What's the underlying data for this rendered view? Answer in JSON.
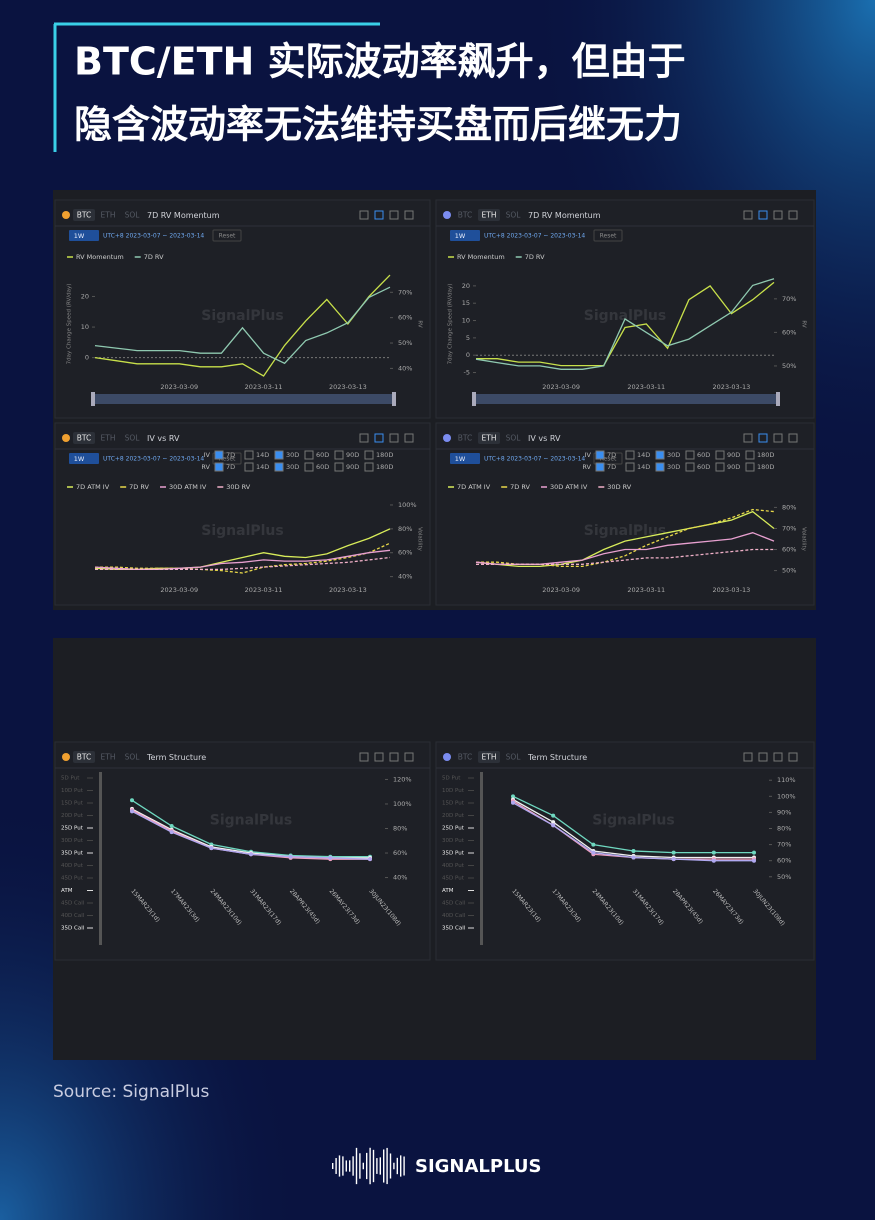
{
  "title": [
    "BTC/ETH 实际波动率飙升，但由于",
    "隐含波动率无法维持买盘而后继无力"
  ],
  "source": "Source: SignalPlus",
  "brand": "SIGNALPLUS",
  "chart_data": [
    {
      "type": "line",
      "tabs": [
        "BTC",
        "ETH",
        "SOL"
      ],
      "active": "BTC",
      "coin_color": "#f0a030",
      "title": "7D RV Momentum",
      "interval": "1W",
      "date_range": "UTC+8 2023-03-07 ~ 2023-03-14",
      "reset": "Reset",
      "watermark": "SignalPlus",
      "ylabel": "7day Change Speed (RV/day)",
      "y2label": "RV",
      "categories": [
        null,
        null,
        null,
        null,
        "2023-03-09",
        null,
        null,
        null,
        "2023-03-11",
        null,
        null,
        null,
        "2023-03-13",
        null,
        null
      ],
      "ylim": [
        -6,
        28
      ],
      "yticks": [
        0,
        10,
        20
      ],
      "y2lim": [
        37,
        78
      ],
      "y2ticks": [
        {
          "value": 40,
          "label": "40%"
        },
        {
          "value": 50,
          "label": "50%"
        },
        {
          "value": 60,
          "label": "60%"
        },
        {
          "value": 70,
          "label": "70%"
        }
      ],
      "series": [
        {
          "name": "RV Momentum",
          "color": "#c8e04a",
          "values": [
            0,
            -1,
            -2,
            -2,
            -2,
            -3,
            -3,
            -2,
            -6,
            4,
            12,
            19,
            11,
            20,
            27
          ]
        },
        {
          "name": "7D RV",
          "color": "#8fc9b0",
          "axis": "y2",
          "values": [
            49,
            48,
            47,
            47,
            47,
            46,
            46,
            56,
            46,
            42,
            51,
            54,
            58,
            68,
            72
          ]
        }
      ]
    },
    {
      "type": "line",
      "tabs": [
        "BTC",
        "ETH",
        "SOL"
      ],
      "active": "ETH",
      "coin_color": "#7b8cf0",
      "title": "7D RV Momentum",
      "interval": "1W",
      "date_range": "UTC+8 2023-03-07 ~ 2023-03-14",
      "reset": "Reset",
      "watermark": "SignalPlus",
      "ylabel": "7day Change Speed (RV/day)",
      "y2label": "RV",
      "categories": [
        null,
        null,
        null,
        null,
        "2023-03-09",
        null,
        null,
        null,
        "2023-03-11",
        null,
        null,
        null,
        "2023-03-13",
        null,
        null
      ],
      "ylim": [
        -6,
        24
      ],
      "yticks": [
        -5,
        0,
        5,
        10,
        15,
        20
      ],
      "y2lim": [
        47,
        78
      ],
      "y2ticks": [
        {
          "value": 50,
          "label": "50%"
        },
        {
          "value": 60,
          "label": "60%"
        },
        {
          "value": 70,
          "label": "70%"
        }
      ],
      "series": [
        {
          "name": "RV Momentum",
          "color": "#c8e04a",
          "values": [
            -1,
            -1,
            -2,
            -2,
            -3,
            -3,
            -3,
            8,
            9,
            2,
            16,
            20,
            12,
            16,
            21
          ]
        },
        {
          "name": "7D RV",
          "color": "#8fc9b0",
          "axis": "y2",
          "values": [
            52,
            51,
            50,
            50,
            49,
            49,
            50,
            64,
            60,
            56,
            58,
            62,
            66,
            74,
            76
          ]
        }
      ]
    },
    {
      "type": "line",
      "tabs": [
        "BTC",
        "ETH",
        "SOL"
      ],
      "active": "BTC",
      "coin_color": "#f0a030",
      "title": "IV vs RV",
      "interval": "1W",
      "date_range": "UTC+8 2023-03-07 ~ 2023-03-14",
      "reset": "Reset",
      "watermark": "SignalPlus",
      "checks": [
        {
          "label": "IV",
          "options": [
            "7D",
            "14D",
            "30D",
            "60D",
            "90D",
            "180D"
          ],
          "checked": [
            true,
            false,
            true,
            false,
            false,
            false
          ]
        },
        {
          "label": "RV",
          "options": [
            "7D",
            "14D",
            "30D",
            "60D",
            "90D",
            "180D"
          ],
          "checked": [
            true,
            false,
            true,
            false,
            false,
            false
          ]
        }
      ],
      "y2label": "Volatility",
      "categories": [
        null,
        null,
        null,
        null,
        "2023-03-09",
        null,
        null,
        null,
        "2023-03-11",
        null,
        null,
        null,
        "2023-03-13",
        null,
        null
      ],
      "y2lim": [
        38,
        105
      ],
      "y2ticks": [
        {
          "value": 40,
          "label": "40%"
        },
        {
          "value": 60,
          "label": "60%"
        },
        {
          "value": 80,
          "label": "80%"
        },
        {
          "value": 100,
          "label": "100%"
        }
      ],
      "series": [
        {
          "name": "7D ATM IV",
          "color": "#d8ec5a",
          "axis": "y2",
          "values": [
            47,
            46,
            46,
            47,
            47,
            48,
            52,
            56,
            60,
            57,
            56,
            59,
            66,
            72,
            80
          ]
        },
        {
          "name": "7D RV",
          "color": "#e8d84a",
          "axis": "y2",
          "dash": true,
          "values": [
            48,
            48,
            47,
            47,
            47,
            46,
            45,
            43,
            48,
            50,
            51,
            53,
            56,
            60,
            68
          ]
        },
        {
          "name": "30D ATM IV",
          "color": "#e8a0d0",
          "axis": "y2",
          "values": [
            48,
            47,
            46,
            46,
            47,
            48,
            51,
            52,
            54,
            53,
            53,
            54,
            57,
            60,
            62
          ]
        },
        {
          "name": "30D RV",
          "color": "#f0b0c8",
          "axis": "y2",
          "dash": true,
          "values": [
            46,
            46,
            46,
            46,
            46,
            46,
            46,
            47,
            48,
            49,
            50,
            51,
            52,
            54,
            56
          ]
        }
      ]
    },
    {
      "type": "line",
      "tabs": [
        "BTC",
        "ETH",
        "SOL"
      ],
      "active": "ETH",
      "coin_color": "#7b8cf0",
      "title": "IV vs RV",
      "interval": "1W",
      "date_range": "UTC+8 2023-03-07 ~ 2023-03-14",
      "reset": "Reset",
      "watermark": "SignalPlus",
      "checks": [
        {
          "label": "IV",
          "options": [
            "7D",
            "14D",
            "30D",
            "60D",
            "90D",
            "180D"
          ],
          "checked": [
            true,
            false,
            true,
            false,
            false,
            false
          ]
        },
        {
          "label": "RV",
          "options": [
            "7D",
            "14D",
            "30D",
            "60D",
            "90D",
            "180D"
          ],
          "checked": [
            true,
            false,
            true,
            false,
            false,
            false
          ]
        }
      ],
      "y2label": "Volatility",
      "categories": [
        null,
        null,
        null,
        null,
        "2023-03-09",
        null,
        null,
        null,
        "2023-03-11",
        null,
        null,
        null,
        "2023-03-13",
        null,
        null
      ],
      "y2lim": [
        46,
        84
      ],
      "y2ticks": [
        {
          "value": 50,
          "label": "50%"
        },
        {
          "value": 60,
          "label": "60%"
        },
        {
          "value": 70,
          "label": "70%"
        },
        {
          "value": 80,
          "label": "80%"
        }
      ],
      "series": [
        {
          "name": "7D ATM IV",
          "color": "#d8ec5a",
          "axis": "y2",
          "values": [
            54,
            53,
            52,
            52,
            53,
            55,
            60,
            64,
            66,
            68,
            70,
            72,
            74,
            78,
            70
          ]
        },
        {
          "name": "7D RV",
          "color": "#e8d84a",
          "axis": "y2",
          "dash": true,
          "values": [
            54,
            54,
            53,
            53,
            52,
            52,
            54,
            57,
            62,
            66,
            70,
            72,
            75,
            79,
            78
          ]
        },
        {
          "name": "30D ATM IV",
          "color": "#e8a0d0",
          "axis": "y2",
          "values": [
            54,
            53,
            53,
            53,
            54,
            55,
            58,
            60,
            60,
            62,
            63,
            64,
            65,
            68,
            64
          ]
        },
        {
          "name": "30D RV",
          "color": "#f0b0c8",
          "axis": "y2",
          "dash": true,
          "values": [
            53,
            53,
            53,
            53,
            53,
            53,
            54,
            55,
            56,
            56,
            57,
            58,
            59,
            60,
            60
          ]
        }
      ]
    },
    {
      "type": "term",
      "tabs": [
        "BTC",
        "ETH",
        "SOL"
      ],
      "active": "BTC",
      "coin_color": "#f0a030",
      "title": "Term Structure",
      "watermark": "SignalPlus",
      "smile_points": [
        "5D Put",
        "10D Put",
        "15D Put",
        "20D Put",
        "25D Put",
        "30D Put",
        "35D Put",
        "40D Put",
        "45D Put",
        "ATM",
        "45D Call",
        "40D Call",
        "35D Call"
      ],
      "categories": [
        "15MAR23(1d)",
        "17MAR23(3d)",
        "24MAR23(10d)",
        "31MAR23(17d)",
        "28APR23(45d)",
        "26MAY23(73d)",
        "30JUN23(108d)"
      ],
      "y2lim": [
        38,
        122
      ],
      "y2ticks": [
        {
          "value": 40,
          "label": "40%"
        },
        {
          "value": 60,
          "label": "60%"
        },
        {
          "value": 80,
          "label": "80%"
        },
        {
          "value": 100,
          "label": "100%"
        },
        {
          "value": 120,
          "label": "120%"
        }
      ],
      "series": [
        {
          "color": "#6fd8c0",
          "axis": "y2",
          "values": [
            103,
            82,
            67,
            61,
            58,
            57,
            57
          ]
        },
        {
          "color": "#f0f0f0",
          "axis": "y2",
          "values": [
            96,
            79,
            65,
            60,
            57,
            56,
            56
          ]
        },
        {
          "color": "#f0a0c0",
          "axis": "y2",
          "values": [
            95,
            78,
            64,
            59,
            56,
            55,
            55
          ]
        },
        {
          "color": "#b0a8f0",
          "axis": "y2",
          "values": [
            94,
            77,
            64,
            59,
            57,
            56,
            55
          ]
        }
      ]
    },
    {
      "type": "term",
      "tabs": [
        "BTC",
        "ETH",
        "SOL"
      ],
      "active": "ETH",
      "coin_color": "#7b8cf0",
      "title": "Term Structure",
      "watermark": "SignalPlus",
      "smile_points": [
        "5D Put",
        "10D Put",
        "15D Put",
        "20D Put",
        "25D Put",
        "30D Put",
        "35D Put",
        "40D Put",
        "45D Put",
        "ATM",
        "45D Call",
        "40D Call",
        "35D Call"
      ],
      "categories": [
        "15MAR23(1d)",
        "17MAR23(3d)",
        "24MAR23(10d)",
        "31MAR23(17d)",
        "28APR23(45d)",
        "26MAY23(73d)",
        "30JUN23(108d)"
      ],
      "y2lim": [
        48,
        112
      ],
      "y2ticks": [
        {
          "value": 50,
          "label": "50%"
        },
        {
          "value": 60,
          "label": "60%"
        },
        {
          "value": 70,
          "label": "70%"
        },
        {
          "value": 80,
          "label": "80%"
        },
        {
          "value": 90,
          "label": "90%"
        },
        {
          "value": 100,
          "label": "100%"
        },
        {
          "value": 110,
          "label": "110%"
        }
      ],
      "series": [
        {
          "color": "#6fd8c0",
          "axis": "y2",
          "values": [
            100,
            88,
            70,
            66,
            65,
            65,
            65
          ]
        },
        {
          "color": "#f0f0f0",
          "axis": "y2",
          "values": [
            98,
            84,
            66,
            63,
            62,
            62,
            62
          ]
        },
        {
          "color": "#f0a0c0",
          "axis": "y2",
          "values": [
            97,
            82,
            64,
            62,
            61,
            61,
            61
          ]
        },
        {
          "color": "#b0a8f0",
          "axis": "y2",
          "values": [
            96,
            82,
            65,
            62,
            61,
            60,
            60
          ]
        }
      ]
    }
  ]
}
